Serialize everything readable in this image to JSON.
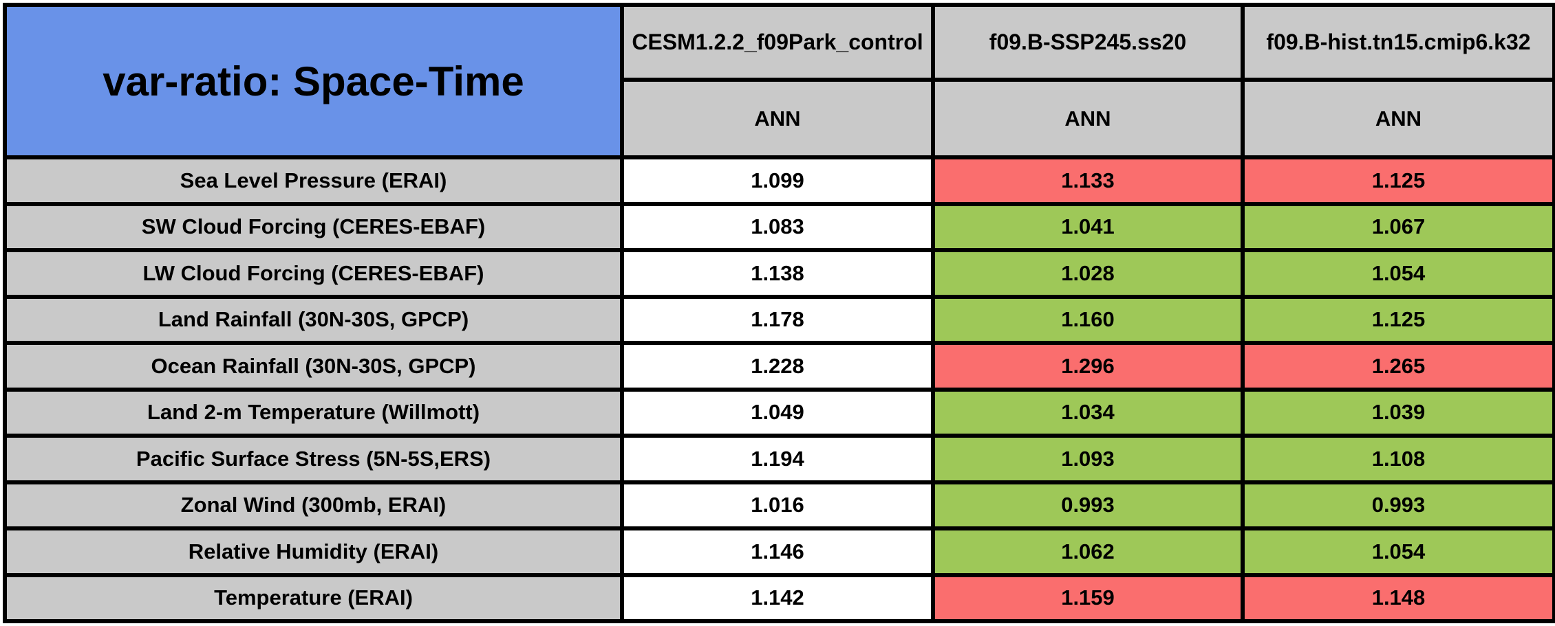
{
  "table": {
    "title": "var-ratio: Space-Time",
    "season_label": "ANN",
    "columns": [
      {
        "model": "CESM1.2.2_f09Park_control",
        "season": "ANN"
      },
      {
        "model": "f09.B-SSP245.ss20",
        "season": "ANN"
      },
      {
        "model": "f09.B-hist.tn15.cmip6.k32",
        "season": "ANN"
      }
    ],
    "rows": [
      {
        "label": "Sea Level Pressure (ERAI)",
        "values": [
          "1.099",
          "1.133",
          "1.125"
        ],
        "status": [
          "neutral",
          "bad",
          "bad"
        ]
      },
      {
        "label": "SW Cloud Forcing (CERES-EBAF)",
        "values": [
          "1.083",
          "1.041",
          "1.067"
        ],
        "status": [
          "neutral",
          "good",
          "good"
        ]
      },
      {
        "label": "LW Cloud Forcing (CERES-EBAF)",
        "values": [
          "1.138",
          "1.028",
          "1.054"
        ],
        "status": [
          "neutral",
          "good",
          "good"
        ]
      },
      {
        "label": "Land Rainfall (30N-30S, GPCP)",
        "values": [
          "1.178",
          "1.160",
          "1.125"
        ],
        "status": [
          "neutral",
          "good",
          "good"
        ]
      },
      {
        "label": "Ocean Rainfall (30N-30S, GPCP)",
        "values": [
          "1.228",
          "1.296",
          "1.265"
        ],
        "status": [
          "neutral",
          "bad",
          "bad"
        ]
      },
      {
        "label": "Land 2-m Temperature (Willmott)",
        "values": [
          "1.049",
          "1.034",
          "1.039"
        ],
        "status": [
          "neutral",
          "good",
          "good"
        ]
      },
      {
        "label": "Pacific Surface Stress (5N-5S,ERS)",
        "values": [
          "1.194",
          "1.093",
          "1.108"
        ],
        "status": [
          "neutral",
          "good",
          "good"
        ]
      },
      {
        "label": "Zonal Wind (300mb, ERAI)",
        "values": [
          "1.016",
          "0.993",
          "0.993"
        ],
        "status": [
          "neutral",
          "good",
          "good"
        ]
      },
      {
        "label": "Relative Humidity (ERAI)",
        "values": [
          "1.146",
          "1.062",
          "1.054"
        ],
        "status": [
          "neutral",
          "good",
          "good"
        ]
      },
      {
        "label": "Temperature (ERAI)",
        "values": [
          "1.142",
          "1.159",
          "1.148"
        ],
        "status": [
          "neutral",
          "bad",
          "bad"
        ]
      }
    ],
    "colors": {
      "title_bg": "#6992E8",
      "header_bg": "#C9C9C9",
      "neutral": "#FFFFFF",
      "good": "#9EC858",
      "bad": "#FA6E6E",
      "border": "#000000"
    }
  }
}
